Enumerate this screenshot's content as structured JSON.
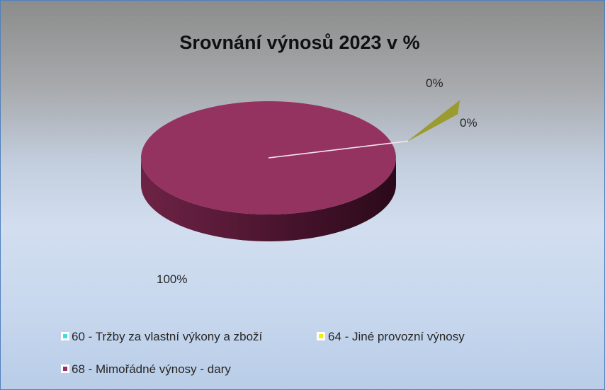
{
  "chart_data": {
    "type": "pie",
    "title": "Srovnání výnosů 2023 v %",
    "categories": [
      "60 - Tržby za vlastní výkony a zboží",
      "64 - Jiné provozní výnosy",
      "68 - Mimořádné výnosy - dary"
    ],
    "values": [
      0,
      0,
      100
    ],
    "data_labels": [
      "0%",
      "0%",
      "100%"
    ],
    "colors": [
      "#4bd8e0",
      "#f2f200",
      "#953360"
    ],
    "exploded_slice_color": "#9b9b32",
    "view": "3d",
    "legend_position": "bottom"
  }
}
